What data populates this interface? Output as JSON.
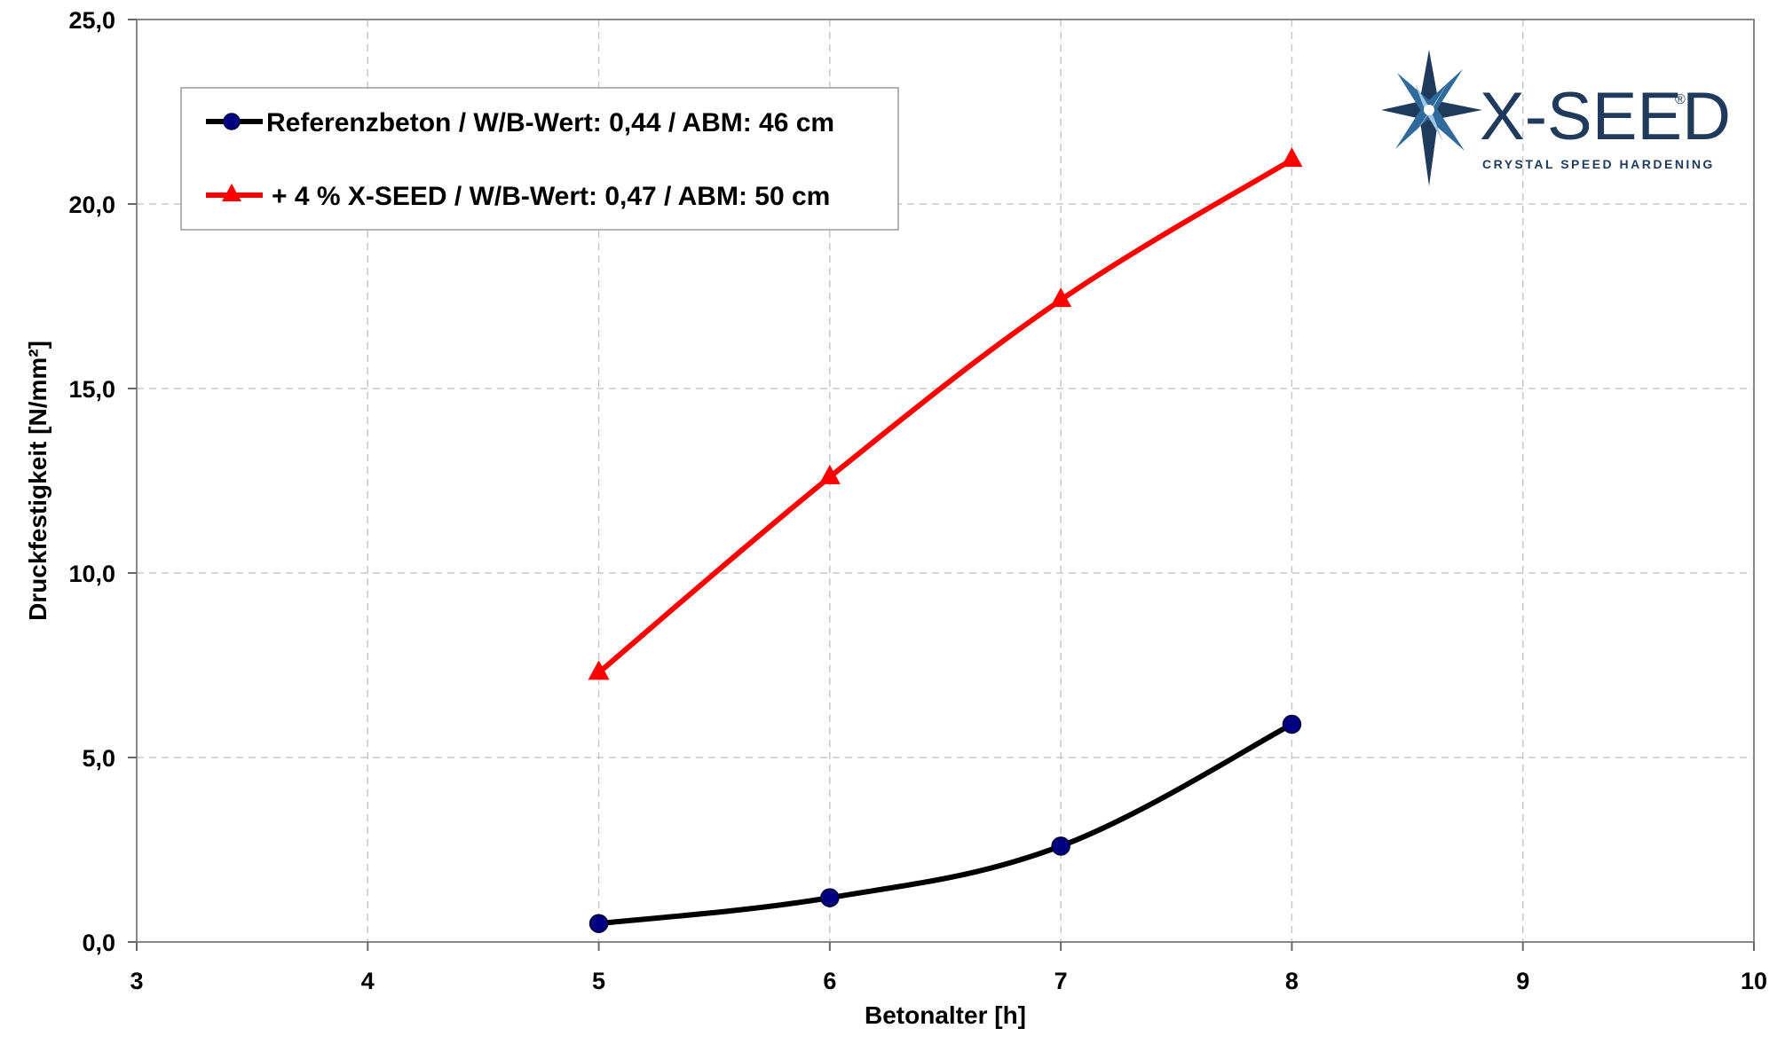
{
  "chart_data": {
    "type": "line",
    "title": "",
    "xlabel": "Betonalter [h]",
    "ylabel": "Druckfestigkeit [N/mm²]",
    "xlim": [
      3,
      10
    ],
    "ylim": [
      0,
      25
    ],
    "x_ticks": [
      "3",
      "4",
      "5",
      "6",
      "7",
      "8",
      "9",
      "10"
    ],
    "y_ticks": [
      "0,0",
      "5,0",
      "10,0",
      "15,0",
      "20,0",
      "25,0"
    ],
    "grid": true,
    "legend_position": "top-left",
    "series": [
      {
        "name": "Referenzbeton / W/B-Wert: 0,44 / ABM: 46 cm",
        "color": "#000000",
        "marker": "circle",
        "marker_color": "#000080",
        "x": [
          5,
          6,
          7,
          8
        ],
        "y": [
          0.5,
          1.2,
          2.6,
          5.9
        ]
      },
      {
        "name": "+ 4 % X-SEED / W/B-Wert: 0,47 / ABM: 50 cm",
        "color": "#ff0000",
        "marker": "triangle",
        "marker_color": "#ff0000",
        "x": [
          5,
          6,
          7,
          8
        ],
        "y": [
          7.3,
          12.6,
          17.4,
          21.2
        ]
      }
    ]
  },
  "logo": {
    "brand": "X-SEED",
    "registered": "®",
    "tagline": "CRYSTAL SPEED HARDENING",
    "brand_color": "#1f3a5a",
    "icon": "star-crystal-icon"
  }
}
